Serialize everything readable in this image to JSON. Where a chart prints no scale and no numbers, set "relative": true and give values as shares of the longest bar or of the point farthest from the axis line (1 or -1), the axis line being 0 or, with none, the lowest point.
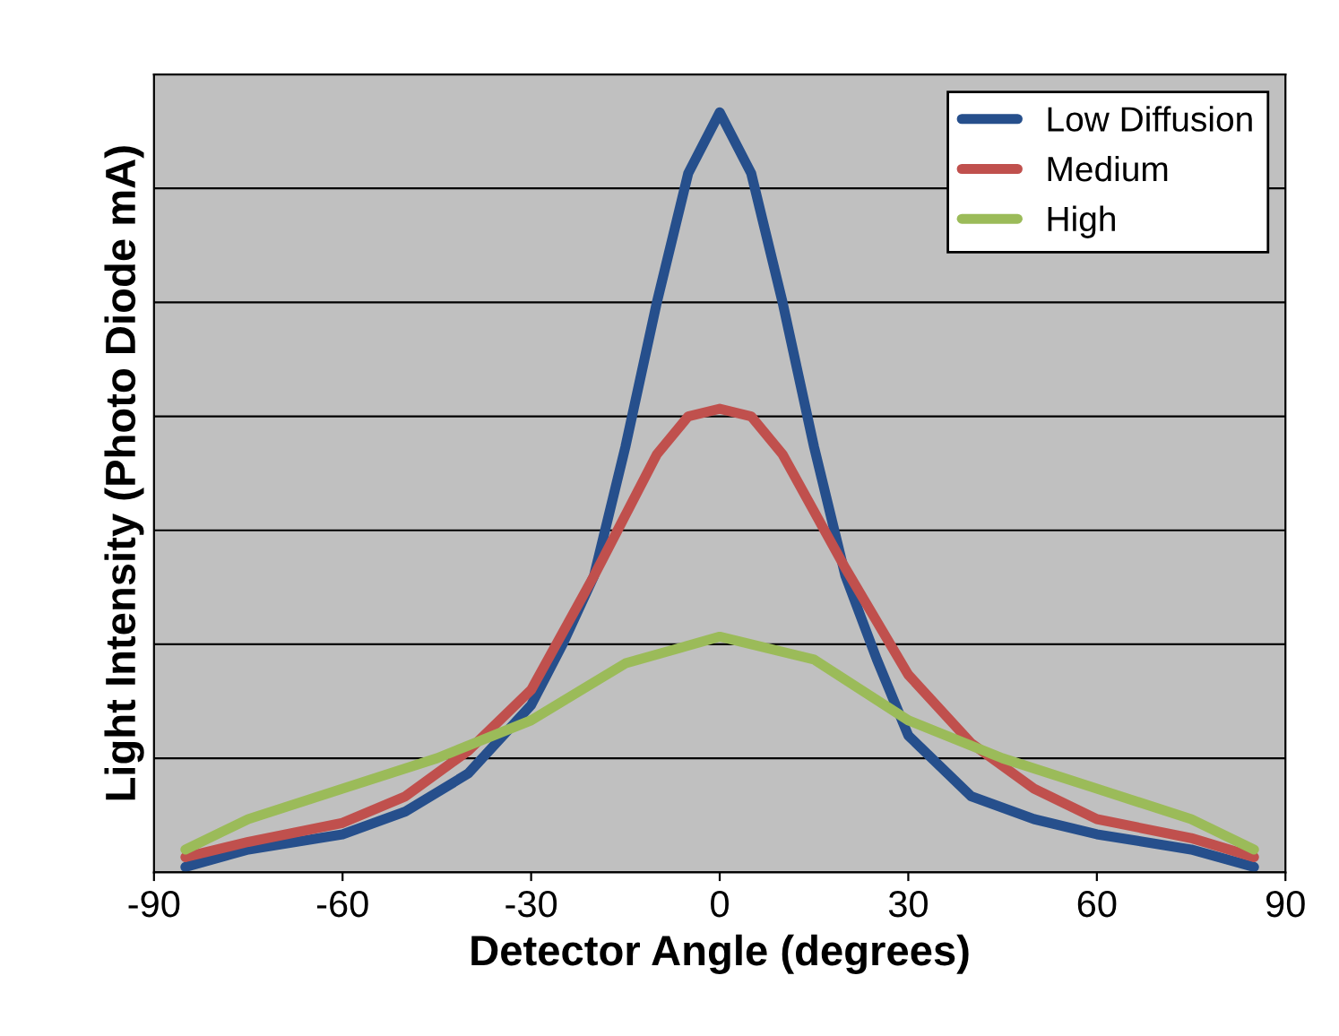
{
  "chart_data": {
    "type": "line",
    "xlabel": "Detector Angle (degrees)",
    "ylabel": "Light Intensity (Photo Diode mA)",
    "relative": true,
    "xlim": [
      -90,
      90
    ],
    "xticks": [
      -90,
      -60,
      -30,
      0,
      30,
      60,
      90
    ],
    "grid": "y",
    "legend": "top right",
    "line_style": "solid",
    "marker": "none",
    "series": [
      {
        "name": "Low Diffusion",
        "color": "#264f8c",
        "x": [
          -85,
          -75,
          -60,
          -50,
          -40,
          -30,
          -25,
          -20,
          -15,
          -10,
          -5,
          0,
          5,
          10,
          15,
          20,
          25,
          30,
          40,
          50,
          60,
          75,
          85
        ],
        "values": [
          0.007,
          0.03,
          0.05,
          0.08,
          0.13,
          0.22,
          0.3,
          0.39,
          0.56,
          0.75,
          0.92,
          1.0,
          0.92,
          0.75,
          0.56,
          0.39,
          0.28,
          0.18,
          0.1,
          0.07,
          0.05,
          0.03,
          0.007
        ]
      },
      {
        "name": "Medium",
        "color": "#c0504d",
        "x": [
          -85,
          -75,
          -60,
          -50,
          -40,
          -30,
          -20,
          -10,
          -5,
          0,
          5,
          10,
          20,
          30,
          40,
          50,
          60,
          75,
          85
        ],
        "values": [
          0.02,
          0.04,
          0.065,
          0.1,
          0.16,
          0.24,
          0.39,
          0.55,
          0.6,
          0.61,
          0.6,
          0.55,
          0.4,
          0.26,
          0.17,
          0.11,
          0.07,
          0.045,
          0.02
        ]
      },
      {
        "name": "High",
        "color": "#9bbb59",
        "x": [
          -85,
          -75,
          -60,
          -45,
          -30,
          -15,
          0,
          15,
          30,
          45,
          60,
          75,
          85
        ],
        "values": [
          0.03,
          0.07,
          0.11,
          0.15,
          0.2,
          0.275,
          0.31,
          0.28,
          0.2,
          0.15,
          0.11,
          0.07,
          0.03
        ]
      }
    ]
  }
}
